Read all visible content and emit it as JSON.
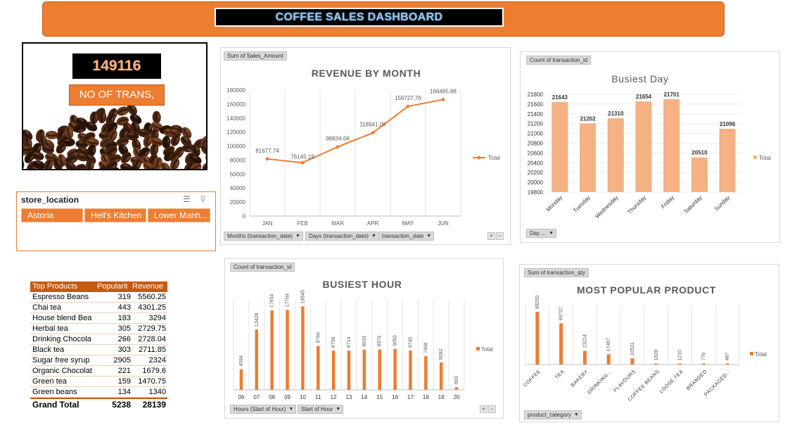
{
  "dashboard": {
    "title": "COFFEE SALES DASHBOARD"
  },
  "kpi": {
    "value": "149116",
    "label": "NO OF TRANS,"
  },
  "slicer": {
    "title": "store_location",
    "items": [
      "Astoria",
      "Hell's Kitchen",
      "Lower Manh..."
    ]
  },
  "revenue_panel": {
    "field": "Sum of Sales_Amount",
    "filters": [
      "Months (transaction_date)",
      "Days (transaction_date)",
      "transaction_date"
    ]
  },
  "busiest_day_panel": {
    "field": "Count of transaction_id",
    "filters": [
      "Day ..."
    ]
  },
  "busiest_hour_panel": {
    "field": "Count of transaction_id",
    "filters": [
      "Hours (Start of Hour)",
      "Start of Hour"
    ]
  },
  "popular_product_panel": {
    "field": "Sum of transaction_qty",
    "filters": [
      "product_category"
    ]
  },
  "pivot": {
    "headers": [
      "Top Products",
      "Popularit",
      "Revenue"
    ],
    "rows": [
      [
        "Espresso Beans",
        "319",
        "5560.25"
      ],
      [
        "Chai tea",
        "443",
        "4301.25"
      ],
      [
        "House blend Bea",
        "183",
        "3294"
      ],
      [
        "Herbal tea",
        "305",
        "2729.75"
      ],
      [
        "Drinking Chocola",
        "266",
        "2728.04"
      ],
      [
        "Black tea",
        "303",
        "2711.85"
      ],
      [
        "Sugar free syrup",
        "2905",
        "2324"
      ],
      [
        "Organic Chocolat",
        "221",
        "1679.6"
      ],
      [
        "Green tea",
        "159",
        "1470.75"
      ],
      [
        "Green beans",
        "134",
        "1340"
      ]
    ],
    "total": [
      "Grand Total",
      "5238",
      "28139"
    ]
  },
  "colors": {
    "accent": "#ed7d31",
    "accent_light": "#f4b183",
    "dark_accent": "#c55a11"
  },
  "chart_data": [
    {
      "id": "revenue",
      "type": "line",
      "title": "REVENUE BY MONTH",
      "categories": [
        "JAN",
        "FEB",
        "MAR",
        "APR",
        "MAY",
        "JUN"
      ],
      "series": [
        {
          "name": "Total",
          "values": [
            81677.74,
            76145.19,
            98834.68,
            118941.08,
            156727.76,
            166485.88
          ]
        }
      ],
      "labels": [
        "81677.74",
        "76145.19",
        "98834.68",
        "118941.08",
        "156727.76",
        "166485.88"
      ],
      "ylim": [
        0,
        180000
      ],
      "yticks": [
        "0",
        "20000",
        "40000",
        "60000",
        "80000",
        "100000",
        "120000",
        "140000",
        "160000",
        "180000"
      ],
      "legend": "right"
    },
    {
      "id": "busiest_day",
      "type": "bar",
      "title": "Busiest Day",
      "categories": [
        "Monday",
        "Tuesday",
        "Wednesday",
        "Thursday",
        "Friday",
        "Saturday",
        "Sunday"
      ],
      "series": [
        {
          "name": "Total",
          "values": [
            21643,
            21202,
            21310,
            21654,
            21701,
            20510,
            21096
          ]
        }
      ],
      "ylim": [
        19800,
        21800
      ],
      "yticks": [
        "19800",
        "20000",
        "20200",
        "20400",
        "20600",
        "20800",
        "21000",
        "21200",
        "21400",
        "21600",
        "21800"
      ],
      "legend": "right"
    },
    {
      "id": "busiest_hour",
      "type": "bar",
      "title": "BUSIEST HOUR",
      "categories": [
        "06",
        "07",
        "08",
        "09",
        "10",
        "11",
        "12",
        "13",
        "14",
        "15",
        "16",
        "17",
        "18",
        "19",
        "20"
      ],
      "series": [
        {
          "name": "Total",
          "values": [
            4594,
            13428,
            17654,
            17764,
            18545,
            9766,
            8708,
            8714,
            8933,
            8979,
            9093,
            8745,
            7498,
            6092,
            603
          ]
        }
      ],
      "ylim": [
        0,
        20000
      ],
      "legend": "right"
    },
    {
      "id": "popular_product",
      "type": "bar",
      "title": "MOST POPULAR PRODUCT",
      "categories": [
        "COFFEE",
        "TEA",
        "BAKERY",
        "DRINKING...",
        "FLAVOURS",
        "COFFEE BEANS",
        "LOOSE TEA",
        "BRANDED",
        "PACKAGED..."
      ],
      "series": [
        {
          "name": "Total",
          "values": [
            89250,
            69737,
            23214,
            17457,
            10511,
            1828,
            1210,
            776,
            487
          ]
        }
      ],
      "ylim": [
        0,
        100000
      ],
      "legend": "right"
    }
  ]
}
